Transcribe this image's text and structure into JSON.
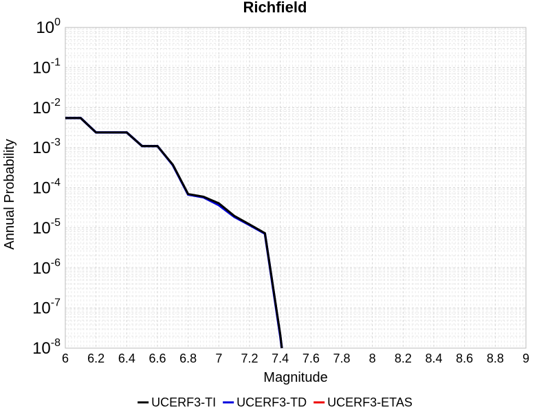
{
  "chart_data": {
    "type": "line",
    "title": "Richfield",
    "xlabel": "Magnitude",
    "ylabel": "Annual Probability",
    "xlim": [
      6,
      9
    ],
    "ylim": [
      1e-08,
      1
    ],
    "y_scale": "log",
    "grid": true,
    "legend_position": "bottom",
    "x_ticks": [
      6,
      6.2,
      6.4,
      6.6,
      6.8,
      7,
      7.2,
      7.4,
      7.6,
      7.8,
      8,
      8.2,
      8.4,
      8.6,
      8.8,
      9
    ],
    "x_tick_labels": [
      "6",
      "6.2",
      "6.4",
      "6.6",
      "6.8",
      "7",
      "7.2",
      "7.4",
      "7.6",
      "7.8",
      "8",
      "8.2",
      "8.4",
      "8.6",
      "8.8",
      "9"
    ],
    "y_ticks": [
      {
        "value": 1,
        "base": "10",
        "exp": "0"
      },
      {
        "value": 0.1,
        "base": "10",
        "exp": "-1"
      },
      {
        "value": 0.01,
        "base": "10",
        "exp": "-2"
      },
      {
        "value": 0.001,
        "base": "10",
        "exp": "-3"
      },
      {
        "value": 0.0001,
        "base": "10",
        "exp": "-4"
      },
      {
        "value": 1e-05,
        "base": "10",
        "exp": "-5"
      },
      {
        "value": 1e-06,
        "base": "10",
        "exp": "-6"
      },
      {
        "value": 1e-07,
        "base": "10",
        "exp": "-7"
      },
      {
        "value": 1e-08,
        "base": "10",
        "exp": "-8"
      }
    ],
    "series": [
      {
        "name": "UCERF3-TI",
        "color": "#000000",
        "x": [
          6.0,
          6.1,
          6.2,
          6.3,
          6.4,
          6.5,
          6.6,
          6.7,
          6.8,
          6.9,
          7.0,
          7.1,
          7.2,
          7.3,
          7.4,
          7.41
        ],
        "y": [
          0.0055,
          0.0055,
          0.0024,
          0.0024,
          0.0024,
          0.0011,
          0.0011,
          0.00038,
          7e-05,
          6e-05,
          4.1e-05,
          2e-05,
          1.22e-05,
          7.4e-06,
          2.2e-08,
          1e-08
        ]
      },
      {
        "name": "UCERF3-TD",
        "color": "#0000dd",
        "x": [
          6.0,
          6.1,
          6.2,
          6.3,
          6.4,
          6.5,
          6.6,
          6.7,
          6.8,
          6.9,
          7.0,
          7.1,
          7.2,
          7.3,
          7.4,
          7.41
        ],
        "y": [
          0.0055,
          0.0055,
          0.0024,
          0.0024,
          0.0024,
          0.0011,
          0.0011,
          0.00037,
          6.8e-05,
          5.8e-05,
          3.7e-05,
          1.9e-05,
          1.18e-05,
          7.2e-06,
          2e-08,
          1e-08
        ]
      },
      {
        "name": "UCERF3-ETAS",
        "color": "#ee0000",
        "x": [],
        "y": []
      }
    ]
  }
}
